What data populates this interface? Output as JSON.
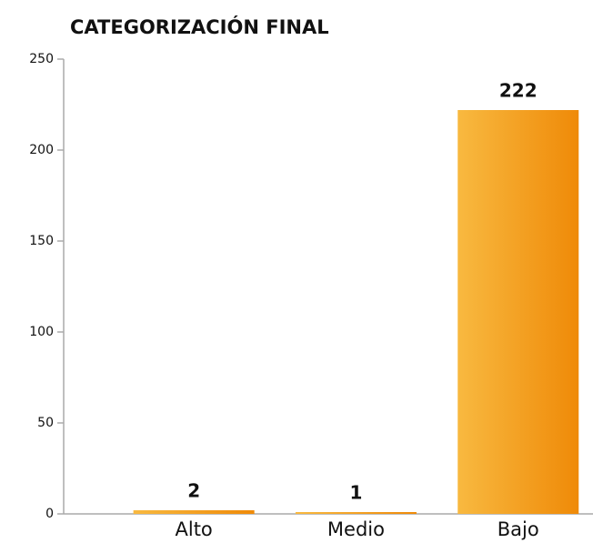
{
  "chart_data": {
    "type": "bar",
    "title": "CATEGORIZACIÓN FINAL",
    "categories": [
      "Alto",
      "Medio",
      "Bajo"
    ],
    "values": [
      2,
      1,
      222
    ],
    "color": [
      "#f8b940",
      "#ef8a08"
    ],
    "ylim": [
      0,
      250
    ],
    "yticks": [
      0,
      50,
      100,
      150,
      200,
      250
    ]
  }
}
